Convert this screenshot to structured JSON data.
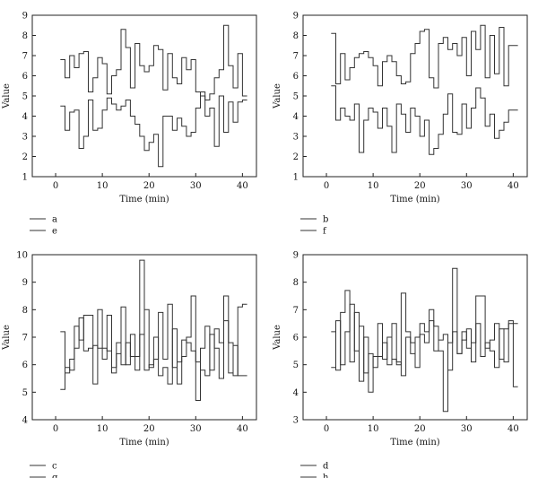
{
  "chart_data": [
    {
      "type": "line",
      "step": true,
      "xlabel": "Time (min)",
      "ylabel": "Value",
      "xlim": [
        -5,
        43
      ],
      "ylim": [
        1,
        9
      ],
      "xticks": [
        0,
        10,
        20,
        30,
        40
      ],
      "yticks": [
        1,
        2,
        3,
        4,
        5,
        6,
        7,
        8,
        9
      ],
      "xtick_labels": [
        "0",
        "10",
        "20",
        "30",
        "40"
      ],
      "ytick_labels": [
        "1",
        "2",
        "3",
        "4",
        "5",
        "6",
        "7",
        "8",
        "9"
      ],
      "series": [
        {
          "name": "a",
          "x": [
            1,
            2,
            3,
            4,
            5,
            6,
            7,
            8,
            9,
            10,
            11,
            12,
            13,
            14,
            15,
            16,
            17,
            18,
            19,
            20,
            21,
            22,
            23,
            24,
            25,
            26,
            27,
            28,
            29,
            30,
            31,
            32,
            33,
            34,
            35,
            36,
            37,
            38,
            39,
            40
          ],
          "values": [
            6.8,
            5.9,
            7.0,
            6.4,
            7.1,
            7.2,
            5.2,
            5.9,
            6.9,
            6.6,
            5.1,
            6.0,
            6.3,
            8.3,
            7.4,
            5.4,
            7.6,
            6.5,
            6.2,
            6.5,
            7.5,
            7.3,
            5.3,
            7.1,
            5.9,
            5.6,
            6.9,
            6.3,
            6.8,
            5.2,
            5.0,
            4.8,
            5.1,
            5.9,
            6.3,
            8.5,
            6.5,
            5.4,
            7.1,
            5.0
          ]
        },
        {
          "name": "e",
          "x": [
            1,
            2,
            3,
            4,
            5,
            6,
            7,
            8,
            9,
            10,
            11,
            12,
            13,
            14,
            15,
            16,
            17,
            18,
            19,
            20,
            21,
            22,
            23,
            24,
            25,
            26,
            27,
            28,
            29,
            30,
            31,
            32,
            33,
            34,
            35,
            36,
            37,
            38,
            39,
            40
          ],
          "values": [
            4.5,
            3.3,
            4.2,
            4.3,
            2.4,
            3.0,
            4.8,
            3.3,
            3.4,
            4.3,
            4.9,
            4.6,
            4.3,
            4.5,
            4.8,
            4.0,
            3.6,
            3.0,
            2.3,
            2.7,
            3.1,
            1.5,
            4.0,
            4.0,
            3.3,
            3.9,
            3.5,
            3.0,
            3.2,
            4.4,
            5.2,
            4.0,
            4.4,
            2.5,
            5.0,
            3.2,
            4.7,
            3.7,
            4.7,
            4.8
          ]
        }
      ]
    },
    {
      "type": "line",
      "step": true,
      "xlabel": "Time (min)",
      "ylabel": "Value",
      "xlim": [
        -5,
        43
      ],
      "ylim": [
        1,
        9
      ],
      "xticks": [
        0,
        10,
        20,
        30,
        40
      ],
      "yticks": [
        1,
        2,
        3,
        4,
        5,
        6,
        7,
        8,
        9
      ],
      "xtick_labels": [
        "0",
        "10",
        "20",
        "30",
        "40"
      ],
      "ytick_labels": [
        "1",
        "2",
        "3",
        "4",
        "5",
        "6",
        "7",
        "8",
        "9"
      ],
      "series": [
        {
          "name": "b",
          "x": [
            1,
            2,
            3,
            4,
            5,
            6,
            7,
            8,
            9,
            10,
            11,
            12,
            13,
            14,
            15,
            16,
            17,
            18,
            19,
            20,
            21,
            22,
            23,
            24,
            25,
            26,
            27,
            28,
            29,
            30,
            31,
            32,
            33,
            34,
            35,
            36,
            37,
            38,
            39,
            40
          ],
          "values": [
            8.1,
            5.6,
            7.1,
            5.8,
            6.4,
            6.9,
            7.1,
            7.2,
            6.9,
            6.5,
            5.5,
            6.7,
            7.0,
            6.7,
            6.0,
            5.6,
            5.7,
            7.1,
            7.6,
            8.2,
            8.3,
            5.9,
            5.4,
            7.6,
            7.9,
            7.3,
            7.6,
            7.0,
            7.9,
            6.0,
            8.2,
            7.3,
            8.5,
            5.9,
            8.0,
            6.1,
            8.4,
            5.5,
            7.5,
            7.5
          ]
        },
        {
          "name": "f",
          "x": [
            1,
            2,
            3,
            4,
            5,
            6,
            7,
            8,
            9,
            10,
            11,
            12,
            13,
            14,
            15,
            16,
            17,
            18,
            19,
            20,
            21,
            22,
            23,
            24,
            25,
            26,
            27,
            28,
            29,
            30,
            31,
            32,
            33,
            34,
            35,
            36,
            37,
            38,
            39,
            40
          ],
          "values": [
            5.5,
            3.8,
            4.4,
            4.0,
            3.8,
            4.6,
            2.2,
            3.8,
            4.4,
            4.2,
            3.4,
            4.4,
            3.5,
            2.2,
            4.6,
            4.1,
            3.2,
            4.4,
            4.0,
            3.0,
            3.8,
            2.1,
            2.4,
            3.1,
            4.1,
            5.1,
            3.2,
            3.1,
            4.6,
            3.4,
            4.4,
            5.4,
            4.9,
            3.5,
            4.1,
            2.9,
            3.3,
            3.7,
            4.3,
            4.3
          ]
        }
      ]
    },
    {
      "type": "line",
      "step": true,
      "xlabel": "Time (min)",
      "ylabel": "Value",
      "xlim": [
        -5,
        43
      ],
      "ylim": [
        4,
        10
      ],
      "xticks": [
        0,
        10,
        20,
        30,
        40
      ],
      "yticks": [
        4,
        5,
        6,
        7,
        8,
        9,
        10
      ],
      "xtick_labels": [
        "0",
        "10",
        "20",
        "30",
        "40"
      ],
      "ytick_labels": [
        "4",
        "5",
        "6",
        "7",
        "8",
        "9",
        "10"
      ],
      "series": [
        {
          "name": "c",
          "x": [
            1,
            2,
            3,
            4,
            5,
            6,
            7,
            8,
            9,
            10,
            11,
            12,
            13,
            14,
            15,
            16,
            17,
            18,
            19,
            20,
            21,
            22,
            23,
            24,
            25,
            26,
            27,
            28,
            29,
            30,
            31,
            32,
            33,
            34,
            35,
            36,
            37,
            38,
            39,
            40
          ],
          "values": [
            7.2,
            5.7,
            6.2,
            7.4,
            6.9,
            7.8,
            7.8,
            5.3,
            8.0,
            6.2,
            7.8,
            5.7,
            6.4,
            8.1,
            6.0,
            7.1,
            6.3,
            7.1,
            8.0,
            5.9,
            6.2,
            7.9,
            6.2,
            8.2,
            5.9,
            6.1,
            6.3,
            7.0,
            8.5,
            4.7,
            6.6,
            7.4,
            5.8,
            7.3,
            6.8,
            8.5,
            6.8,
            5.6,
            8.1,
            8.2
          ]
        },
        {
          "name": "g",
          "x": [
            1,
            2,
            3,
            4,
            5,
            6,
            7,
            8,
            9,
            10,
            11,
            12,
            13,
            14,
            15,
            16,
            17,
            18,
            19,
            20,
            21,
            22,
            23,
            24,
            25,
            26,
            27,
            28,
            29,
            30,
            31,
            32,
            33,
            34,
            35,
            36,
            37,
            38,
            39,
            40
          ],
          "values": [
            5.1,
            5.9,
            5.8,
            6.6,
            7.7,
            6.5,
            6.6,
            6.7,
            6.6,
            6.6,
            6.5,
            5.9,
            6.8,
            6.0,
            6.8,
            6.3,
            5.8,
            9.8,
            5.8,
            6.0,
            7.0,
            5.6,
            5.9,
            5.3,
            7.3,
            5.3,
            6.9,
            6.8,
            6.5,
            6.1,
            5.8,
            5.6,
            7.1,
            6.6,
            5.5,
            7.6,
            5.7,
            6.7,
            5.6,
            5.6
          ]
        }
      ]
    },
    {
      "type": "line",
      "step": true,
      "xlabel": "Time (min)",
      "ylabel": "Value",
      "xlim": [
        -5,
        43
      ],
      "ylim": [
        3,
        9
      ],
      "xticks": [
        0,
        10,
        20,
        30,
        40
      ],
      "yticks": [
        3,
        4,
        5,
        6,
        7,
        8,
        9
      ],
      "xtick_labels": [
        "0",
        "10",
        "20",
        "30",
        "40"
      ],
      "ytick_labels": [
        "3",
        "4",
        "5",
        "6",
        "7",
        "8",
        "9"
      ],
      "series": [
        {
          "name": "d",
          "x": [
            1,
            2,
            3,
            4,
            5,
            6,
            7,
            8,
            9,
            10,
            11,
            12,
            13,
            14,
            15,
            16,
            17,
            18,
            19,
            20,
            21,
            22,
            23,
            24,
            25,
            26,
            27,
            28,
            29,
            30,
            31,
            32,
            33,
            34,
            35,
            36,
            37,
            38,
            39,
            40
          ],
          "values": [
            6.2,
            4.8,
            6.9,
            7.7,
            5.1,
            6.9,
            4.4,
            6.0,
            4.0,
            5.3,
            6.5,
            5.2,
            6.0,
            5.2,
            5.0,
            7.6,
            6.2,
            5.4,
            6.0,
            6.1,
            5.8,
            7.0,
            5.5,
            5.9,
            6.1,
            4.8,
            8.5,
            5.4,
            6.2,
            5.6,
            5.8,
            7.5,
            7.5,
            5.6,
            5.9,
            6.5,
            5.2,
            6.3,
            6.6,
            6.5
          ]
        },
        {
          "name": "h",
          "x": [
            1,
            2,
            3,
            4,
            5,
            6,
            7,
            8,
            9,
            10,
            11,
            12,
            13,
            14,
            15,
            16,
            17,
            18,
            19,
            20,
            21,
            22,
            23,
            24,
            25,
            26,
            27,
            28,
            29,
            30,
            31,
            32,
            33,
            34,
            35,
            36,
            37,
            38,
            39,
            40
          ],
          "values": [
            4.9,
            6.6,
            5.0,
            6.2,
            7.2,
            5.5,
            6.4,
            4.7,
            5.4,
            4.9,
            5.3,
            5.8,
            5.0,
            6.5,
            5.1,
            4.6,
            6.0,
            5.8,
            4.9,
            6.5,
            6.2,
            6.6,
            6.4,
            5.5,
            3.3,
            5.8,
            6.2,
            5.4,
            5.9,
            6.3,
            5.1,
            6.5,
            5.3,
            5.8,
            5.5,
            4.9,
            6.3,
            5.1,
            6.5,
            4.2
          ]
        }
      ]
    }
  ]
}
